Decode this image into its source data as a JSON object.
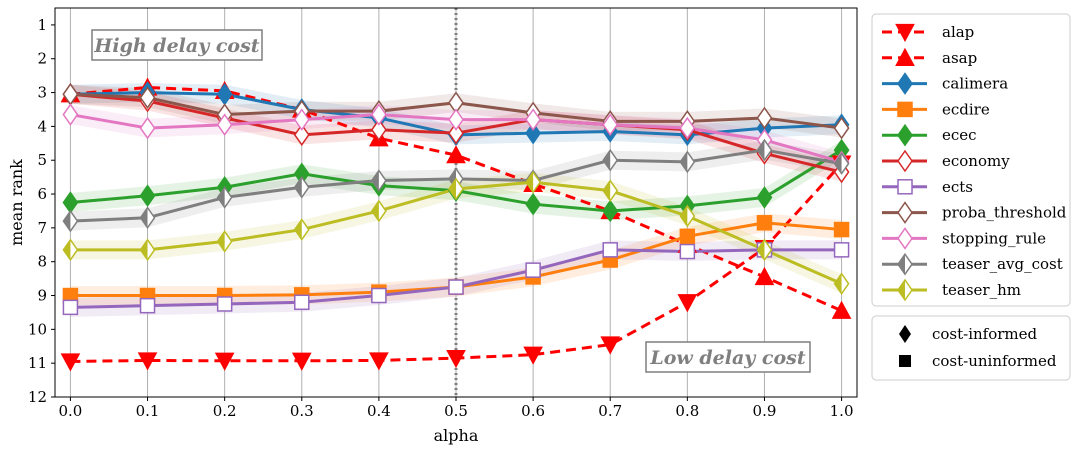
{
  "chart_data": {
    "type": "line",
    "title": "",
    "xlabel": "alpha",
    "ylabel": "mean rank",
    "x": [
      0.0,
      0.1,
      0.2,
      0.3,
      0.4,
      0.5,
      0.6,
      0.7,
      0.8,
      0.9,
      1.0
    ],
    "x_tick_labels": [
      "0.0",
      "0.1",
      "0.2",
      "0.3",
      "0.4",
      "0.5",
      "0.6",
      "0.7",
      "0.8",
      "0.9",
      "1.0"
    ],
    "xlim": [
      -0.02,
      1.02
    ],
    "ylim": [
      12,
      0.5
    ],
    "y_inverted": true,
    "y_ticks": [
      1,
      2,
      3,
      4,
      5,
      6,
      7,
      8,
      9,
      10,
      11,
      12
    ],
    "y_tick_labels": [
      "1",
      "2",
      "3",
      "4",
      "5",
      "6",
      "7",
      "8",
      "9",
      "10",
      "11",
      "12"
    ],
    "grid": "vertical",
    "vline": {
      "x": 0.5,
      "style": "dotted",
      "color": "#808080"
    },
    "annotations": [
      {
        "text": "High delay cost",
        "x": 0.06,
        "y": 1.6
      },
      {
        "text": "Low delay cost",
        "x": 0.94,
        "y": 11.0
      }
    ],
    "series": [
      {
        "name": "alap",
        "color": "#ff0000",
        "marker": "triangle-down",
        "filled": true,
        "dashed": true,
        "values": [
          10.95,
          10.92,
          10.93,
          10.93,
          10.92,
          10.85,
          10.75,
          10.45,
          9.2,
          7.6,
          5.1
        ]
      },
      {
        "name": "asap",
        "color": "#ff0000",
        "marker": "triangle-up",
        "filled": true,
        "dashed": true,
        "values": [
          3.05,
          2.85,
          2.95,
          3.5,
          4.35,
          4.85,
          5.7,
          6.5,
          7.5,
          8.45,
          9.45
        ]
      },
      {
        "name": "calimera",
        "color": "#1f77b4",
        "marker": "diamond",
        "filled": true,
        "dashed": false,
        "values": [
          3.05,
          3.0,
          3.05,
          3.5,
          3.75,
          4.25,
          4.2,
          4.15,
          4.25,
          4.05,
          3.95
        ]
      },
      {
        "name": "ecdire",
        "color": "#ff7f0e",
        "marker": "square",
        "filled": true,
        "dashed": false,
        "values": [
          9.0,
          9.0,
          9.0,
          8.98,
          8.9,
          8.75,
          8.45,
          7.95,
          7.25,
          6.85,
          7.05
        ]
      },
      {
        "name": "ecec",
        "color": "#2ca02c",
        "marker": "diamond",
        "filled": true,
        "dashed": false,
        "values": [
          6.25,
          6.05,
          5.8,
          5.4,
          5.75,
          5.9,
          6.3,
          6.5,
          6.35,
          6.1,
          4.7
        ]
      },
      {
        "name": "economy",
        "color": "#d62728",
        "marker": "diamond",
        "filled": false,
        "dashed": false,
        "values": [
          3.05,
          3.25,
          3.75,
          4.25,
          4.1,
          4.2,
          3.8,
          3.95,
          4.1,
          4.8,
          5.35
        ]
      },
      {
        "name": "ects",
        "color": "#9467bd",
        "marker": "square",
        "filled": false,
        "dashed": false,
        "values": [
          9.35,
          9.3,
          9.25,
          9.2,
          9.0,
          8.75,
          8.25,
          7.65,
          7.7,
          7.65,
          7.65
        ]
      },
      {
        "name": "proba_threshold",
        "color": "#8c564b",
        "marker": "diamond",
        "filled": false,
        "dashed": false,
        "values": [
          3.05,
          3.15,
          3.65,
          3.55,
          3.55,
          3.3,
          3.6,
          3.85,
          3.85,
          3.75,
          4.05
        ]
      },
      {
        "name": "stopping_rule",
        "color": "#e377c2",
        "marker": "diamond",
        "filled": false,
        "dashed": false,
        "values": [
          3.65,
          4.05,
          3.95,
          3.8,
          3.65,
          3.8,
          3.8,
          3.95,
          4.05,
          4.4,
          5.05
        ]
      },
      {
        "name": "teaser_avg_cost",
        "color": "#7f7f7f",
        "marker": "diamond-half",
        "filled": false,
        "dashed": false,
        "values": [
          6.8,
          6.7,
          6.1,
          5.8,
          5.6,
          5.55,
          5.6,
          5.0,
          5.05,
          4.7,
          5.1
        ]
      },
      {
        "name": "teaser_hm",
        "color": "#bcbd22",
        "marker": "diamond-half",
        "filled": false,
        "dashed": false,
        "values": [
          7.65,
          7.65,
          7.4,
          7.05,
          6.5,
          5.85,
          5.65,
          5.9,
          6.65,
          7.65,
          8.65
        ]
      }
    ],
    "legend": {
      "placement": "right",
      "marker_key": [
        {
          "label": "cost-informed",
          "marker": "diamond"
        },
        {
          "label": "cost-uninformed",
          "marker": "square"
        }
      ]
    }
  }
}
